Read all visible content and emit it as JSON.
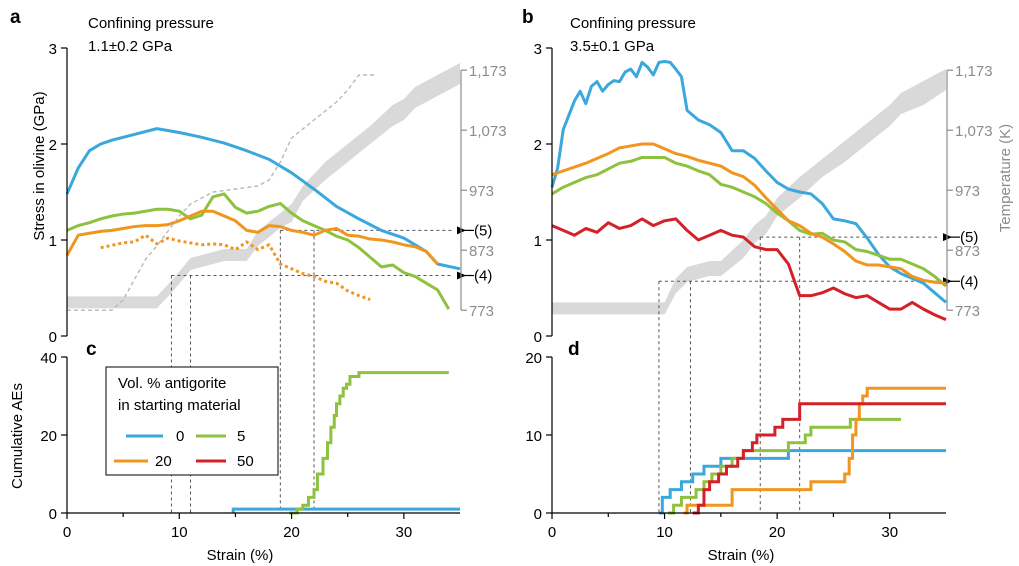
{
  "colors": {
    "0": "#3aa8dc",
    "5": "#8dc13f",
    "20": "#f0961e",
    "50": "#d42027",
    "band": "#d9d9d9",
    "temp": "#8c8c8c"
  },
  "legend": {
    "title_line1": "Vol. % antigorite",
    "title_line2": "in starting material",
    "entries": [
      "0",
      "5",
      "20",
      "50"
    ]
  },
  "chart_data": [
    {
      "panel": "a",
      "type": "line",
      "title_line1": "Confining pressure",
      "title_line2": "1.1±0.2 GPa",
      "xlabel": "",
      "ylabel": "Stress in olivine (GPa)",
      "xlim": [
        0,
        35
      ],
      "ylim": [
        0,
        3
      ],
      "yticks": [
        "0",
        "1",
        "2",
        "3"
      ],
      "temperature_axis": {
        "label": "",
        "ticks": [
          "773",
          "873",
          "973",
          "1,073",
          "1,173"
        ],
        "ylim": [
          730,
          1210
        ]
      },
      "markers": [
        {
          "label": "(5)",
          "y": 1.1
        },
        {
          "label": "(4)",
          "y": 0.63
        }
      ],
      "guide_x": [
        9.3,
        11,
        19,
        22
      ],
      "series": [
        {
          "name": "0",
          "style": "solid",
          "x": [
            0,
            1,
            2,
            3,
            4,
            6,
            8,
            10,
            12,
            14,
            16,
            18,
            20,
            22,
            24,
            26,
            28,
            30,
            32,
            33,
            35
          ],
          "y": [
            1.48,
            1.75,
            1.93,
            2.0,
            2.04,
            2.1,
            2.16,
            2.12,
            2.07,
            2.01,
            1.93,
            1.84,
            1.7,
            1.53,
            1.35,
            1.22,
            1.1,
            1.02,
            0.88,
            0.75,
            0.7
          ]
        },
        {
          "name": "5",
          "style": "solid",
          "x": [
            0,
            1,
            2,
            3,
            4,
            5,
            6,
            7,
            8,
            9,
            10,
            11,
            12,
            13,
            14,
            15,
            16,
            17,
            18,
            19,
            20,
            21,
            22,
            23,
            24,
            25,
            26,
            27,
            28,
            29,
            30,
            31,
            32,
            33,
            34
          ],
          "y": [
            1.1,
            1.15,
            1.18,
            1.22,
            1.25,
            1.27,
            1.28,
            1.3,
            1.32,
            1.32,
            1.3,
            1.22,
            1.26,
            1.45,
            1.48,
            1.34,
            1.28,
            1.3,
            1.35,
            1.38,
            1.28,
            1.2,
            1.15,
            1.1,
            1.04,
            1.0,
            0.92,
            0.82,
            0.72,
            0.74,
            0.66,
            0.62,
            0.55,
            0.48,
            0.28
          ]
        },
        {
          "name": "20",
          "style": "solid",
          "x": [
            0,
            1,
            2,
            3,
            4,
            5,
            6,
            7,
            8,
            9,
            10,
            11,
            12,
            13,
            14,
            15,
            16,
            17,
            18,
            19,
            20,
            21,
            22,
            23,
            24,
            25,
            26,
            27,
            28,
            29,
            30,
            31,
            32,
            33
          ],
          "y": [
            0.84,
            1.05,
            1.07,
            1.09,
            1.1,
            1.12,
            1.14,
            1.15,
            1.15,
            1.16,
            1.2,
            1.25,
            1.3,
            1.3,
            1.25,
            1.2,
            1.1,
            1.08,
            1.15,
            1.14,
            1.1,
            1.08,
            1.05,
            1.1,
            1.12,
            1.05,
            1.04,
            1.01,
            1.0,
            0.98,
            0.95,
            0.93,
            0.88,
            0.75
          ]
        },
        {
          "name": "20",
          "style": "dotted",
          "x": [
            3,
            5,
            6,
            7,
            8,
            9,
            10,
            11,
            12,
            13,
            14,
            15,
            16,
            17,
            18,
            19,
            20,
            21,
            22,
            23,
            24,
            25,
            26,
            27
          ],
          "y": [
            0.92,
            0.97,
            0.98,
            1.05,
            0.96,
            1.02,
            0.99,
            0.97,
            0.95,
            0.96,
            0.95,
            0.9,
            0.98,
            0.9,
            0.95,
            0.75,
            0.7,
            0.65,
            0.62,
            0.57,
            0.55,
            0.47,
            0.42,
            0.38
          ]
        },
        {
          "name": "",
          "style": "temp-dashed",
          "x": [
            0,
            2,
            4,
            5,
            7,
            8,
            9,
            10,
            11,
            13,
            15,
            17,
            18,
            19,
            20,
            22,
            24,
            25,
            26,
            27.5
          ],
          "y": [
            773,
            773,
            773,
            790,
            858,
            880,
            905,
            930,
            950,
            970,
            975,
            980,
            990,
            1020,
            1060,
            1090,
            1120,
            1140,
            1165,
            1165
          ]
        }
      ],
      "band": {
        "x": [
          0,
          8,
          9.5,
          11,
          14,
          16,
          17,
          19,
          20,
          21,
          23,
          25,
          27,
          29,
          30,
          31,
          33,
          35
        ],
        "y_low": [
          776,
          776,
          806,
          840,
          855,
          855,
          880,
          910,
          920,
          955,
          990,
          1020,
          1050,
          1080,
          1090,
          1110,
          1130,
          1150
        ],
        "y_high": [
          796,
          796,
          826,
          860,
          875,
          875,
          905,
          935,
          950,
          980,
          1020,
          1050,
          1080,
          1115,
          1125,
          1145,
          1165,
          1185
        ]
      }
    },
    {
      "panel": "b",
      "type": "line",
      "title_line1": "Confining pressure",
      "title_line2": "3.5±0.1 GPa",
      "xlabel": "",
      "ylabel": "",
      "xlim": [
        0,
        35
      ],
      "ylim": [
        0,
        3
      ],
      "yticks": [
        "0",
        "1",
        "2",
        "3"
      ],
      "temperature_axis": {
        "label": "Temperature (K)",
        "ticks": [
          "773",
          "873",
          "973",
          "1,073",
          "1,173"
        ],
        "ylim": [
          730,
          1210
        ]
      },
      "markers": [
        {
          "label": "(5)",
          "y": 1.03
        },
        {
          "label": "(4)",
          "y": 0.57
        }
      ],
      "guide_x": [
        9.5,
        12.3,
        18.5,
        22
      ],
      "series": [
        {
          "name": "0",
          "style": "solid",
          "x": [
            0,
            0.5,
            1,
            1.5,
            2,
            2.5,
            3,
            3.5,
            4,
            4.5,
            5,
            5.5,
            6,
            6.5,
            7,
            7.5,
            8,
            8.5,
            9,
            9.5,
            10,
            10.5,
            11,
            11.5,
            12,
            13,
            14,
            15,
            16,
            17,
            18,
            19,
            20,
            21,
            22,
            23,
            24,
            25,
            26,
            27,
            28,
            29,
            30,
            31,
            32,
            33,
            34,
            35
          ],
          "y": [
            1.55,
            1.75,
            2.15,
            2.3,
            2.45,
            2.55,
            2.42,
            2.6,
            2.65,
            2.55,
            2.62,
            2.66,
            2.65,
            2.75,
            2.78,
            2.7,
            2.85,
            2.8,
            2.72,
            2.85,
            2.86,
            2.85,
            2.78,
            2.7,
            2.35,
            2.25,
            2.2,
            2.12,
            1.93,
            1.93,
            1.85,
            1.72,
            1.6,
            1.53,
            1.5,
            1.48,
            1.38,
            1.22,
            1.2,
            1.17,
            1.02,
            0.85,
            0.72,
            0.65,
            0.6,
            0.55,
            0.45,
            0.35
          ]
        },
        {
          "name": "5",
          "style": "solid",
          "x": [
            0,
            1,
            2,
            3,
            4,
            5,
            6,
            7,
            8,
            9,
            10,
            11,
            12,
            13,
            14,
            15,
            16,
            17,
            18,
            19,
            20,
            21,
            22,
            23,
            24,
            25,
            26,
            27,
            28,
            29,
            30,
            31,
            32,
            33,
            34,
            35
          ],
          "y": [
            1.48,
            1.55,
            1.6,
            1.65,
            1.68,
            1.74,
            1.8,
            1.82,
            1.86,
            1.86,
            1.86,
            1.8,
            1.77,
            1.72,
            1.68,
            1.58,
            1.55,
            1.5,
            1.45,
            1.38,
            1.28,
            1.2,
            1.1,
            1.06,
            1.07,
            1.0,
            0.98,
            0.9,
            0.88,
            0.84,
            0.8,
            0.8,
            0.75,
            0.7,
            0.62,
            0.52
          ]
        },
        {
          "name": "20",
          "style": "solid",
          "x": [
            0,
            1,
            2,
            3,
            4,
            5,
            6,
            7,
            8,
            9,
            10,
            11,
            12,
            13,
            14,
            15,
            16,
            17,
            18,
            19,
            20,
            21,
            22,
            23,
            24,
            25,
            26,
            27,
            28,
            29,
            30,
            31,
            32,
            33,
            34,
            35
          ],
          "y": [
            1.68,
            1.72,
            1.76,
            1.8,
            1.85,
            1.9,
            1.96,
            1.98,
            2.0,
            2.0,
            1.95,
            1.9,
            1.87,
            1.83,
            1.8,
            1.77,
            1.7,
            1.66,
            1.57,
            1.44,
            1.32,
            1.2,
            1.15,
            1.07,
            1.03,
            0.96,
            0.88,
            0.78,
            0.74,
            0.74,
            0.72,
            0.7,
            0.62,
            0.58,
            0.56,
            0.55
          ]
        },
        {
          "name": "50",
          "style": "solid",
          "x": [
            0,
            1,
            2,
            3,
            4,
            5,
            6,
            7,
            8,
            9,
            10,
            11,
            12,
            13,
            14,
            15,
            16,
            17,
            18,
            19,
            20,
            21,
            22,
            23,
            24,
            25,
            26,
            27,
            28,
            29,
            30,
            31,
            32,
            33,
            34,
            35
          ],
          "y": [
            1.15,
            1.1,
            1.05,
            1.12,
            1.08,
            1.18,
            1.12,
            1.15,
            1.22,
            1.15,
            1.2,
            1.22,
            1.1,
            1.0,
            1.05,
            1.1,
            1.05,
            1.03,
            0.93,
            0.9,
            0.9,
            0.75,
            0.42,
            0.42,
            0.45,
            0.5,
            0.44,
            0.4,
            0.42,
            0.35,
            0.28,
            0.28,
            0.35,
            0.28,
            0.22,
            0.17
          ]
        }
      ],
      "band": {
        "x": [
          0,
          10,
          11,
          12,
          14,
          15,
          17,
          18,
          19,
          20,
          22,
          24,
          26,
          28,
          30,
          31,
          33,
          35
        ],
        "y_low": [
          766,
          766,
          801,
          820,
          830,
          830,
          860,
          885,
          900,
          930,
          960,
          995,
          1020,
          1050,
          1080,
          1100,
          1115,
          1140
        ],
        "y_high": [
          786,
          786,
          826,
          845,
          855,
          855,
          890,
          915,
          930,
          960,
          995,
          1025,
          1055,
          1085,
          1115,
          1135,
          1155,
          1175
        ]
      }
    },
    {
      "panel": "c",
      "type": "line",
      "xlabel": "Strain (%)",
      "ylabel": "Cumulative AEs",
      "xlim": [
        0,
        35
      ],
      "ylim": [
        0,
        40
      ],
      "xticks": [
        "0",
        "10",
        "20",
        "30"
      ],
      "yticks": [
        "0",
        "20",
        "40"
      ],
      "series": [
        {
          "name": "0",
          "style": "step",
          "x": [
            14.8,
            14.8,
            35
          ],
          "y": [
            0,
            1,
            1
          ]
        },
        {
          "name": "5",
          "style": "step",
          "x": [
            19.8,
            20.5,
            21,
            21.5,
            22,
            22.3,
            22.8,
            23.2,
            23.5,
            23.8,
            24,
            24.3,
            24.6,
            24.9,
            25.2,
            25.5,
            26,
            34
          ],
          "y": [
            0,
            1,
            2,
            4,
            6,
            10,
            14,
            18,
            22,
            25,
            28,
            30,
            32,
            33,
            35,
            35,
            36,
            36
          ]
        }
      ]
    },
    {
      "panel": "d",
      "type": "line",
      "xlabel": "Strain (%)",
      "ylabel": "",
      "xlim": [
        0,
        35
      ],
      "ylim": [
        0,
        20
      ],
      "xticks": [
        "0",
        "10",
        "20",
        "30"
      ],
      "yticks": [
        "0",
        "10",
        "20"
      ],
      "series": [
        {
          "name": "0",
          "style": "step",
          "x": [
            9.5,
            9.8,
            10.5,
            11.5,
            12.5,
            13.5,
            15,
            16,
            21,
            35
          ],
          "y": [
            0,
            2,
            3,
            4,
            5,
            6,
            7,
            7,
            8,
            8
          ]
        },
        {
          "name": "5",
          "style": "step",
          "x": [
            10.3,
            10.8,
            11.5,
            12.8,
            13.5,
            14.2,
            15,
            16,
            17,
            18.5,
            20,
            21,
            22.5,
            23,
            25,
            26.5,
            27.5,
            31
          ],
          "y": [
            0,
            1,
            2,
            3,
            4,
            5,
            6,
            7,
            8,
            8,
            8,
            9,
            10,
            11,
            11,
            12,
            12,
            12
          ]
        },
        {
          "name": "20",
          "style": "step",
          "x": [
            11.7,
            12,
            16,
            23,
            26,
            26.4,
            26.7,
            27,
            27.3,
            27.6,
            28,
            35
          ],
          "y": [
            0,
            1,
            3,
            4,
            5,
            7,
            10,
            12,
            14,
            15,
            16,
            16
          ]
        },
        {
          "name": "50",
          "style": "step",
          "x": [
            12.5,
            13,
            13.5,
            14,
            14.8,
            15.5,
            16.5,
            17,
            17.8,
            18.2,
            19,
            19.8,
            20.5,
            22,
            35
          ],
          "y": [
            0,
            1,
            3,
            4,
            5,
            6,
            7,
            8,
            9,
            10,
            10,
            11,
            12,
            14,
            14
          ]
        }
      ]
    }
  ]
}
